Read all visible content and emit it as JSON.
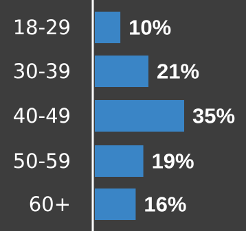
{
  "colors": {
    "background": "#3d3d3d",
    "bar": "#3a85c6",
    "axis": "#ffffff",
    "text": "#ffffff"
  },
  "chart_data": {
    "type": "bar",
    "orientation": "horizontal",
    "categories": [
      "18-29",
      "30-39",
      "40-49",
      "50-59",
      "60+"
    ],
    "values": [
      10,
      21,
      35,
      19,
      16
    ],
    "value_labels": [
      "10%",
      "21%",
      "35%",
      "19%",
      "16%"
    ],
    "unit": "%",
    "xlim": [
      0,
      35
    ],
    "grid": false,
    "legend": "none"
  }
}
